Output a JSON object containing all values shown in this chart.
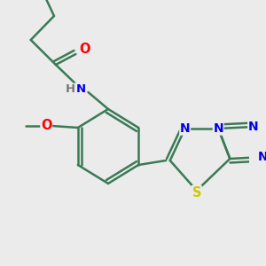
{
  "background_color": "#ebebeb",
  "bond_color": "#3a7a55",
  "bond_width": 1.8,
  "atom_colors": {
    "O": "#ff0000",
    "N": "#0000ee",
    "S": "#cccc00",
    "H": "#777777",
    "C": "#3a7a55"
  },
  "font_size": 9.5,
  "figsize": [
    3.0,
    3.0
  ],
  "dpi": 100
}
